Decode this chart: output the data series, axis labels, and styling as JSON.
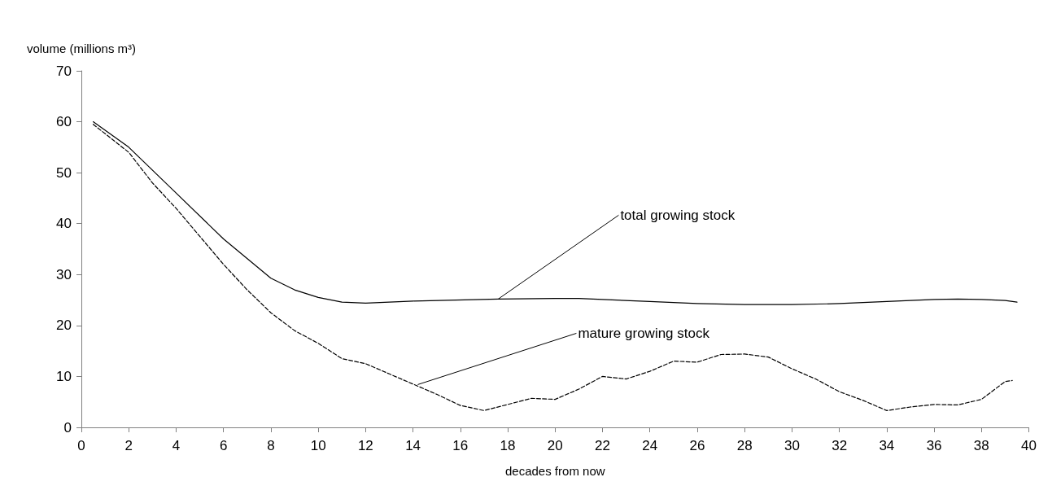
{
  "chart_data": {
    "type": "line",
    "xlabel": "decades from now",
    "ylabel": "volume (millions m³)",
    "xlim": [
      0,
      40
    ],
    "xticks": [
      0,
      2,
      4,
      6,
      8,
      10,
      12,
      14,
      16,
      18,
      20,
      22,
      24,
      26,
      28,
      30,
      32,
      34,
      36,
      38,
      40
    ],
    "ylim": [
      0,
      70
    ],
    "yticks": [
      0,
      10,
      20,
      30,
      40,
      50,
      60,
      70
    ],
    "grid": false,
    "marker": "none",
    "series": [
      {
        "color": "#000000",
        "line_style": "solid",
        "x": [
          0.5,
          2,
          4,
          6,
          8,
          9,
          10,
          11,
          12,
          14,
          17.6,
          20,
          21,
          24,
          26,
          28,
          30,
          32,
          34,
          36,
          37,
          38,
          39,
          39.5
        ],
        "values": [
          60,
          55,
          46,
          37,
          29.3,
          27,
          25.5,
          24.6,
          24.4,
          24.8,
          25.2,
          25.3,
          25.3,
          24.7,
          24.3,
          24.1,
          24.1,
          24.3,
          24.7,
          25.1,
          25.2,
          25.1,
          24.9,
          24.6
        ]
      },
      {
        "color": "#000000",
        "line_style": "dashed",
        "x": [
          0.5,
          2,
          3,
          4,
          6,
          7,
          8,
          9,
          10,
          11,
          12,
          13,
          14,
          15,
          16,
          17,
          18,
          19,
          20,
          21,
          22,
          23,
          24,
          25,
          26,
          27,
          28,
          29,
          30,
          31,
          32,
          33,
          34,
          35,
          36,
          37,
          38,
          39,
          39.3
        ],
        "values": [
          59.5,
          54,
          48,
          43,
          32,
          27,
          22.5,
          19,
          16.5,
          13.5,
          12.5,
          10.5,
          8.5,
          6.5,
          4.3,
          3.3,
          4.5,
          5.7,
          5.5,
          7.5,
          10,
          9.5,
          11,
          13,
          12.8,
          14.3,
          14.4,
          13.8,
          11.5,
          9.5,
          7,
          5.3,
          3.3,
          4,
          4.5,
          4.4,
          5.5,
          9,
          9.2
        ]
      }
    ],
    "annotations": [
      {
        "text": "total growing stock",
        "x": 17.6,
        "y": 25.2
      },
      {
        "text": "mature growing stock",
        "x": 14.2,
        "y": 8.4
      }
    ]
  }
}
